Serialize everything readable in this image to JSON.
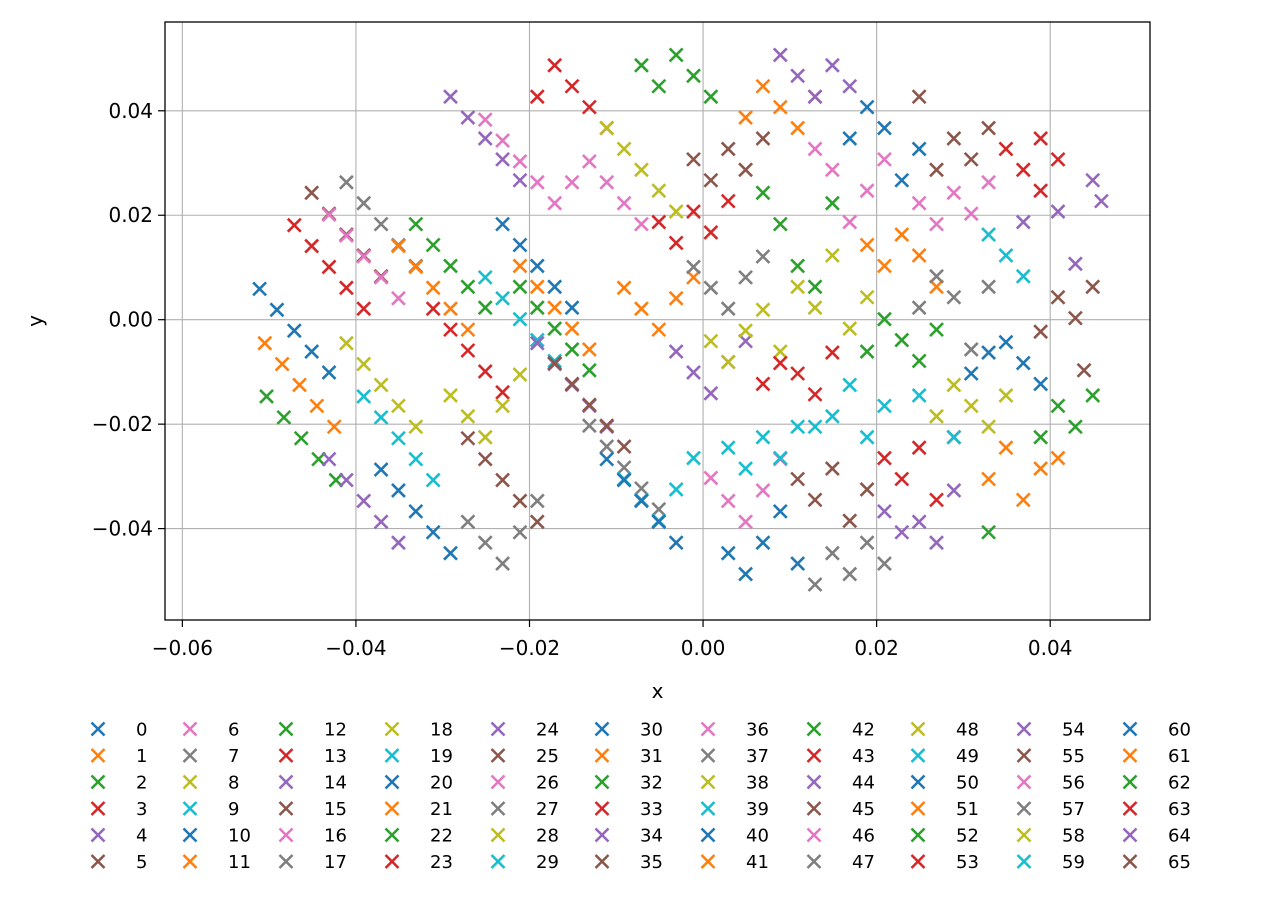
{
  "chart_data": {
    "type": "scatter",
    "marker": "x",
    "xlabel": "x",
    "ylabel": "y",
    "xlim": [
      -0.062,
      0.0515
    ],
    "ylim": [
      -0.0575,
      0.057
    ],
    "xticks": [
      -0.06,
      -0.04,
      -0.02,
      0.0,
      0.02,
      0.04
    ],
    "xtick_labels": [
      "−0.06",
      "−0.04",
      "−0.02",
      "0.00",
      "0.02",
      "0.04"
    ],
    "yticks": [
      -0.04,
      -0.02,
      0.0,
      0.02,
      0.04
    ],
    "ytick_labels": [
      "−0.04",
      "−0.02",
      "0.00",
      "0.02",
      "0.04"
    ],
    "grid": true,
    "legend_placement": "below plot, 12 columns",
    "palette": [
      "#1f77b4",
      "#ff7f0e",
      "#2ca02c",
      "#d62728",
      "#9467bd",
      "#8c564b",
      "#e377c2",
      "#7f7f7f",
      "#bcbd22",
      "#17becf"
    ],
    "lattice_note": "each series is a diagonal row of points spaced dx=0.004, dy=-0.004; rows shifted by 0.004 per series",
    "series": [
      {
        "name": "0",
        "x": [
          -0.0511,
          -0.0491,
          -0.0471,
          -0.0451,
          -0.0431
        ],
        "y": [
          0.0059,
          0.0019,
          -0.0021,
          -0.0061,
          -0.0101
        ]
      },
      {
        "name": "1",
        "x": [
          -0.0505,
          -0.0485,
          -0.0465,
          -0.0445,
          -0.0425
        ],
        "y": [
          -0.0045,
          -0.0085,
          -0.0125,
          -0.0165,
          -0.0205
        ]
      },
      {
        "name": "2",
        "x": [
          -0.0503,
          -0.0483,
          -0.0463,
          -0.0443,
          -0.0423
        ],
        "y": [
          -0.0147,
          -0.0187,
          -0.0227,
          -0.0267,
          -0.0307
        ]
      },
      {
        "name": "3",
        "x": [
          -0.0471,
          -0.0451,
          -0.0431,
          -0.0411,
          -0.0391
        ],
        "y": [
          0.0181,
          0.0141,
          0.0101,
          0.0061,
          0.0021
        ]
      },
      {
        "name": "4",
        "x": [
          -0.0431,
          -0.0411,
          -0.0391,
          -0.0371,
          -0.0351
        ],
        "y": [
          -0.0267,
          -0.0307,
          -0.0347,
          -0.0387,
          -0.0427
        ]
      },
      {
        "name": "5",
        "x": [
          -0.0451,
          -0.0431,
          -0.0411,
          -0.0391,
          -0.0371
        ],
        "y": [
          0.0243,
          0.0203,
          0.0163,
          0.0123,
          0.0083
        ]
      },
      {
        "name": "6",
        "x": [
          -0.0431,
          -0.0411,
          -0.0391,
          -0.0371,
          -0.0351
        ],
        "y": [
          0.0201,
          0.0161,
          0.0121,
          0.0081,
          0.0041
        ]
      },
      {
        "name": "7",
        "x": [
          -0.0411,
          -0.0391,
          -0.0371,
          -0.0351,
          -0.0331
        ],
        "y": [
          0.0263,
          0.0223,
          0.0183,
          0.0143,
          0.0103
        ]
      },
      {
        "name": "8",
        "x": [
          -0.0411,
          -0.0391,
          -0.0371,
          -0.0351,
          -0.0331
        ],
        "y": [
          -0.0045,
          -0.0085,
          -0.0125,
          -0.0165,
          -0.0205
        ]
      },
      {
        "name": "9",
        "x": [
          -0.0391,
          -0.0371,
          -0.0351,
          -0.0331,
          -0.0311
        ],
        "y": [
          -0.0147,
          -0.0187,
          -0.0227,
          -0.0267,
          -0.0307
        ]
      },
      {
        "name": "10",
        "x": [
          -0.0371,
          -0.0351,
          -0.0331,
          -0.0311,
          -0.0291
        ],
        "y": [
          -0.0287,
          -0.0327,
          -0.0367,
          -0.0407,
          -0.0447
        ]
      },
      {
        "name": "11",
        "x": [
          -0.0351,
          -0.0331,
          -0.0311,
          -0.0291,
          -0.0271
        ],
        "y": [
          0.0141,
          0.0101,
          0.0061,
          0.0021,
          -0.0019
        ]
      },
      {
        "name": "12",
        "x": [
          -0.0331,
          -0.0311,
          -0.0291,
          -0.0271,
          -0.0251
        ],
        "y": [
          0.0183,
          0.0143,
          0.0103,
          0.0063,
          0.0023
        ]
      },
      {
        "name": "13",
        "x": [
          -0.0311,
          -0.0291,
          -0.0271,
          -0.0251,
          -0.0231
        ],
        "y": [
          0.0021,
          -0.0019,
          -0.0059,
          -0.0099,
          -0.0139
        ]
      },
      {
        "name": "14",
        "x": [
          -0.0291,
          -0.0271,
          -0.0251,
          -0.0231,
          -0.0211
        ],
        "y": [
          0.0427,
          0.0387,
          0.0347,
          0.0307,
          0.0267
        ]
      },
      {
        "name": "15",
        "x": [
          -0.0271,
          -0.0251,
          -0.0231,
          -0.0211,
          -0.0191
        ],
        "y": [
          -0.0227,
          -0.0267,
          -0.0307,
          -0.0347,
          -0.0387
        ]
      },
      {
        "name": "16",
        "x": [
          -0.0251,
          -0.0231,
          -0.0211,
          -0.0191,
          -0.0171
        ],
        "y": [
          0.0383,
          0.0343,
          0.0303,
          0.0263,
          0.0223
        ]
      },
      {
        "name": "17",
        "x": [
          -0.0271,
          -0.0251,
          -0.0231,
          -0.0211,
          -0.0191
        ],
        "y": [
          -0.0387,
          -0.0427,
          -0.0467,
          -0.0407,
          -0.0347
        ]
      },
      {
        "name": "18",
        "x": [
          -0.0291,
          -0.0271,
          -0.0251,
          -0.0231,
          -0.0211
        ],
        "y": [
          -0.0145,
          -0.0185,
          -0.0225,
          -0.0165,
          -0.0105
        ]
      },
      {
        "name": "19",
        "x": [
          -0.0251,
          -0.0231,
          -0.0211,
          -0.0191,
          -0.0171
        ],
        "y": [
          0.0081,
          0.0041,
          0.0001,
          -0.0039,
          -0.0079
        ]
      },
      {
        "name": "20",
        "x": [
          -0.0231,
          -0.0211,
          -0.0191,
          -0.0171,
          -0.0151
        ],
        "y": [
          0.0183,
          0.0143,
          0.0103,
          0.0063,
          0.0023
        ]
      },
      {
        "name": "21",
        "x": [
          -0.0211,
          -0.0191,
          -0.0171,
          -0.0151,
          -0.0131
        ],
        "y": [
          0.0103,
          0.0063,
          0.0023,
          -0.0017,
          -0.0057
        ]
      },
      {
        "name": "22",
        "x": [
          -0.0211,
          -0.0191,
          -0.0171,
          -0.0151,
          -0.0131
        ],
        "y": [
          0.0063,
          0.0023,
          -0.0017,
          -0.0057,
          -0.0097
        ]
      },
      {
        "name": "23",
        "x": [
          -0.0191,
          -0.0171,
          -0.0151,
          -0.0131,
          -0.0111
        ],
        "y": [
          0.0427,
          0.0487,
          0.0447,
          0.0407,
          0.0367
        ]
      },
      {
        "name": "24",
        "x": [
          -0.0191,
          -0.0171,
          -0.0151,
          -0.0131,
          -0.0111
        ],
        "y": [
          -0.0045,
          -0.0085,
          -0.0125,
          -0.0165,
          -0.0205
        ]
      },
      {
        "name": "25",
        "x": [
          -0.0171,
          -0.0151,
          -0.0131,
          -0.0111,
          -0.0091
        ],
        "y": [
          -0.0083,
          -0.0123,
          -0.0163,
          -0.0203,
          -0.0243
        ]
      },
      {
        "name": "26",
        "x": [
          -0.0151,
          -0.0131,
          -0.0111,
          -0.0091,
          -0.0071
        ],
        "y": [
          0.0263,
          0.0303,
          0.0263,
          0.0223,
          0.0183
        ]
      },
      {
        "name": "27",
        "x": [
          -0.0131,
          -0.0111,
          -0.0091,
          -0.0071,
          -0.0051
        ],
        "y": [
          -0.0203,
          -0.0243,
          -0.0283,
          -0.0323,
          -0.0363
        ]
      },
      {
        "name": "28",
        "x": [
          -0.0111,
          -0.0091,
          -0.0071,
          -0.0051,
          -0.0031
        ],
        "y": [
          0.0367,
          0.0327,
          0.0287,
          0.0247,
          0.0207
        ]
      },
      {
        "name": "29",
        "x": [
          -0.0091,
          -0.0071,
          -0.0051,
          -0.0031,
          -0.0011
        ],
        "y": [
          -0.0305,
          -0.0345,
          -0.0385,
          -0.0325,
          -0.0265
        ]
      },
      {
        "name": "30",
        "x": [
          -0.0111,
          -0.0091,
          -0.0071,
          -0.0051,
          -0.0031
        ],
        "y": [
          -0.0267,
          -0.0307,
          -0.0347,
          -0.0387,
          -0.0427
        ]
      },
      {
        "name": "31",
        "x": [
          -0.0091,
          -0.0071,
          -0.0051,
          -0.0031,
          -0.0011
        ],
        "y": [
          0.0061,
          0.0021,
          -0.0019,
          0.0041,
          0.0081
        ]
      },
      {
        "name": "32",
        "x": [
          -0.0071,
          -0.0051,
          -0.0031,
          -0.0011,
          0.0009
        ],
        "y": [
          0.0487,
          0.0447,
          0.0507,
          0.0467,
          0.0427
        ]
      },
      {
        "name": "33",
        "x": [
          -0.0051,
          -0.0031,
          -0.0011,
          0.0009,
          0.0029
        ],
        "y": [
          0.0187,
          0.0147,
          0.0207,
          0.0167,
          0.0227
        ]
      },
      {
        "name": "34",
        "x": [
          -0.0031,
          -0.0011,
          0.0009,
          0.0029,
          0.0049
        ],
        "y": [
          -0.0061,
          -0.0101,
          -0.0141,
          -0.0081,
          -0.0041
        ]
      },
      {
        "name": "35",
        "x": [
          -0.0011,
          0.0009,
          0.0029,
          0.0049,
          0.0069
        ],
        "y": [
          0.0307,
          0.0267,
          0.0327,
          0.0287,
          0.0347
        ]
      },
      {
        "name": "36",
        "x": [
          0.0009,
          0.0029,
          0.0049,
          0.0069,
          0.0089
        ],
        "y": [
          -0.0303,
          -0.0347,
          -0.0387,
          -0.0327,
          -0.0267
        ]
      },
      {
        "name": "37",
        "x": [
          -0.0011,
          0.0009,
          0.0029,
          0.0049,
          0.0069
        ],
        "y": [
          0.0101,
          0.0061,
          0.0021,
          0.0081,
          0.0121
        ]
      },
      {
        "name": "38",
        "x": [
          0.0009,
          0.0029,
          0.0049,
          0.0069,
          0.0089
        ],
        "y": [
          -0.0041,
          -0.0081,
          -0.0021,
          0.0019,
          -0.0061
        ]
      },
      {
        "name": "39",
        "x": [
          0.0029,
          0.0049,
          0.0069,
          0.0089,
          0.0109
        ],
        "y": [
          -0.0245,
          -0.0285,
          -0.0225,
          -0.0265,
          -0.0205
        ]
      },
      {
        "name": "40",
        "x": [
          0.0029,
          0.0049,
          0.0069,
          0.0089,
          0.0109
        ],
        "y": [
          -0.0447,
          -0.0487,
          -0.0427,
          -0.0367,
          -0.0467
        ]
      },
      {
        "name": "41",
        "x": [
          0.0049,
          0.0069,
          0.0089,
          0.0109,
          0.0129
        ],
        "y": [
          0.0387,
          0.0447,
          0.0407,
          0.0367,
          0.0427
        ]
      },
      {
        "name": "42",
        "x": [
          0.0069,
          0.0089,
          0.0109,
          0.0129,
          0.0149
        ],
        "y": [
          0.0243,
          0.0183,
          0.0103,
          0.0063,
          0.0223
        ]
      },
      {
        "name": "43",
        "x": [
          0.0069,
          0.0089,
          0.0109,
          0.0129,
          0.0149
        ],
        "y": [
          -0.0123,
          -0.0083,
          -0.0103,
          -0.0143,
          -0.0063
        ]
      },
      {
        "name": "44",
        "x": [
          0.0089,
          0.0109,
          0.0129,
          0.0149,
          0.0169
        ],
        "y": [
          0.0507,
          0.0467,
          0.0427,
          0.0487,
          0.0447
        ]
      },
      {
        "name": "45",
        "x": [
          0.0109,
          0.0129,
          0.0149,
          0.0169,
          0.0189
        ],
        "y": [
          -0.0305,
          -0.0345,
          -0.0285,
          -0.0385,
          -0.0325
        ]
      },
      {
        "name": "46",
        "x": [
          0.0129,
          0.0149,
          0.0169,
          0.0189,
          0.0209
        ],
        "y": [
          0.0327,
          0.0287,
          0.0187,
          0.0247,
          0.0307
        ]
      },
      {
        "name": "47",
        "x": [
          0.0129,
          0.0149,
          0.0169,
          0.0189,
          0.0209
        ],
        "y": [
          -0.0507,
          -0.0447,
          -0.0487,
          -0.0427,
          -0.0467
        ]
      },
      {
        "name": "48",
        "x": [
          0.0109,
          0.0129,
          0.0149,
          0.0169,
          0.0189
        ],
        "y": [
          0.0063,
          0.0023,
          0.0123,
          -0.0017,
          0.0043
        ]
      },
      {
        "name": "49",
        "x": [
          0.0129,
          0.0149,
          0.0169,
          0.0189,
          0.0209
        ],
        "y": [
          -0.0205,
          -0.0185,
          -0.0125,
          -0.0225,
          -0.0165
        ]
      },
      {
        "name": "50",
        "x": [
          0.0169,
          0.0189,
          0.0209,
          0.0229,
          0.0249
        ],
        "y": [
          0.0347,
          0.0407,
          0.0367,
          0.0267,
          0.0327
        ]
      },
      {
        "name": "51",
        "x": [
          0.0189,
          0.0209,
          0.0229,
          0.0249,
          0.0269
        ],
        "y": [
          0.0143,
          0.0103,
          0.0163,
          0.0123,
          0.0063
        ]
      },
      {
        "name": "52",
        "x": [
          0.0189,
          0.0209,
          0.0229,
          0.0249,
          0.0269
        ],
        "y": [
          -0.0061,
          0.0001,
          -0.0039,
          -0.0079,
          -0.0019
        ]
      },
      {
        "name": "53",
        "x": [
          0.0209,
          0.0229,
          0.0249,
          0.0269,
          0.0289
        ],
        "y": [
          -0.0265,
          -0.0305,
          -0.0245,
          -0.0345,
          -0.0225
        ]
      },
      {
        "name": "54",
        "x": [
          0.0209,
          0.0229,
          0.0249,
          0.0269,
          0.0289
        ],
        "y": [
          -0.0367,
          -0.0407,
          -0.0387,
          -0.0427,
          -0.0327
        ]
      },
      {
        "name": "55",
        "x": [
          0.0249,
          0.0269,
          0.0289,
          0.0309,
          0.0329
        ],
        "y": [
          0.0427,
          0.0287,
          0.0347,
          0.0307,
          0.0367
        ]
      },
      {
        "name": "56",
        "x": [
          0.0249,
          0.0269,
          0.0289,
          0.0309,
          0.0329
        ],
        "y": [
          0.0223,
          0.0183,
          0.0243,
          0.0203,
          0.0263
        ]
      },
      {
        "name": "57",
        "x": [
          0.0249,
          0.0269,
          0.0289,
          0.0309,
          0.0329
        ],
        "y": [
          0.0023,
          0.0083,
          0.0043,
          -0.0057,
          0.0063
        ]
      },
      {
        "name": "58",
        "x": [
          0.0269,
          0.0289,
          0.0309,
          0.0329,
          0.0349
        ],
        "y": [
          -0.0185,
          -0.0125,
          -0.0165,
          -0.0205,
          -0.0145
        ]
      },
      {
        "name": "59",
        "x": [
          0.0249,
          0.0289,
          0.0329,
          0.0349,
          0.0369
        ],
        "y": [
          -0.0145,
          -0.0225,
          0.0163,
          0.0123,
          0.0083
        ]
      },
      {
        "name": "60",
        "x": [
          0.0309,
          0.0329,
          0.0349,
          0.0369,
          0.0389
        ],
        "y": [
          -0.0103,
          -0.0063,
          -0.0043,
          -0.0083,
          -0.0123
        ]
      },
      {
        "name": "61",
        "x": [
          0.0329,
          0.0349,
          0.0369,
          0.0389,
          0.0409
        ],
        "y": [
          -0.0305,
          -0.0245,
          -0.0345,
          -0.0285,
          -0.0265
        ]
      },
      {
        "name": "62",
        "x": [
          0.0329,
          0.0389,
          0.0409,
          0.0429,
          0.0449
        ],
        "y": [
          -0.0407,
          -0.0225,
          -0.0165,
          -0.0205,
          -0.0145
        ]
      },
      {
        "name": "63",
        "x": [
          0.0349,
          0.0369,
          0.0389,
          0.0409,
          0.0389
        ],
        "y": [
          0.0327,
          0.0287,
          0.0347,
          0.0307,
          0.0247
        ]
      },
      {
        "name": "64",
        "x": [
          0.0369,
          0.0409,
          0.0429,
          0.0449,
          0.0459
        ],
        "y": [
          0.0187,
          0.0207,
          0.0107,
          0.0267,
          0.0227
        ]
      },
      {
        "name": "65",
        "x": [
          0.0389,
          0.0409,
          0.0429,
          0.0439,
          0.0449
        ],
        "y": [
          -0.0023,
          0.0043,
          0.0003,
          -0.0097,
          0.0063
        ]
      }
    ]
  }
}
